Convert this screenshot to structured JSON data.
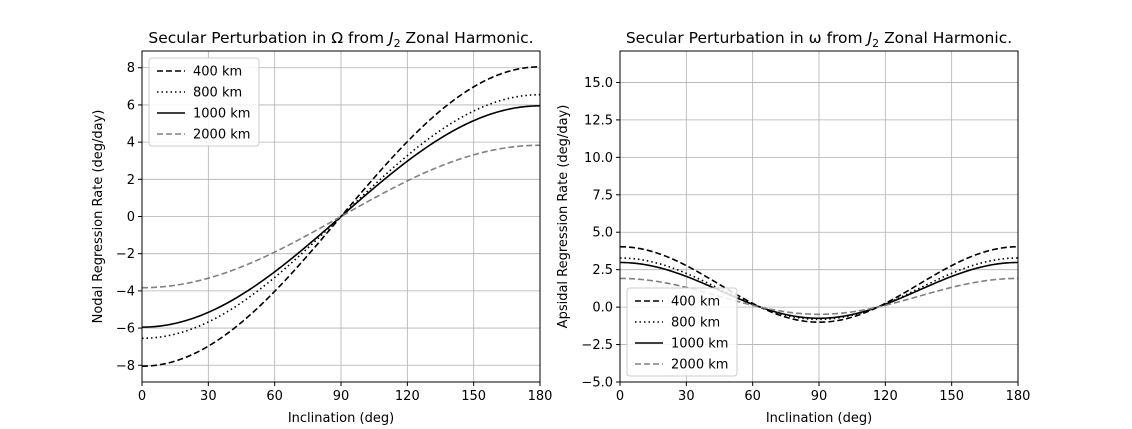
{
  "chart_data": [
    {
      "type": "line",
      "title": "Secular Perturbation in Ω from J₂ Zonal Harmonic.",
      "title_parts": {
        "prefix": "Secular Perturbation in Ω from ",
        "J": "J",
        "sub": "2",
        "suffix": " Zonal Harmonic."
      },
      "xlabel": "Inclination (deg)",
      "ylabel": "Nodal Regression Rate (deg/day)",
      "xlim": [
        0,
        180
      ],
      "ylim": [
        -8.9,
        8.9
      ],
      "xticks": [
        0,
        30,
        60,
        90,
        120,
        150,
        180
      ],
      "yticks": [
        -8,
        -6,
        -4,
        -2,
        0,
        2,
        4,
        6,
        8
      ],
      "ytick_labels": [
        "−8",
        "−6",
        "−4",
        "−2",
        "0",
        "2",
        "4",
        "6",
        "8"
      ],
      "grid": true,
      "legend_position": "top-left",
      "function": "nodal",
      "series": [
        {
          "name": "400 km",
          "amplitude": 8.05,
          "style": "dashed",
          "color": "#000000"
        },
        {
          "name": "800 km",
          "amplitude": 6.55,
          "style": "dotted",
          "color": "#000000"
        },
        {
          "name": "1000 km",
          "amplitude": 5.95,
          "style": "solid",
          "color": "#000000"
        },
        {
          "name": "2000 km",
          "amplitude": 3.83,
          "style": "dashed",
          "color": "#808080"
        }
      ]
    },
    {
      "type": "line",
      "title": "Secular Perturbation in ω from J₂ Zonal Harmonic.",
      "title_parts": {
        "prefix": "Secular Perturbation in ω from ",
        "J": "J",
        "sub": "2",
        "suffix": " Zonal Harmonic."
      },
      "xlabel": "Inclination (deg)",
      "ylabel": "Apsidal Regression Rate (deg/day)",
      "xlim": [
        0,
        180
      ],
      "ylim": [
        -5.0,
        17.1
      ],
      "xticks": [
        0,
        30,
        60,
        90,
        120,
        150,
        180
      ],
      "yticks": [
        -5.0,
        -2.5,
        0.0,
        2.5,
        5.0,
        7.5,
        10.0,
        12.5,
        15.0
      ],
      "ytick_labels": [
        "−5.0",
        "−2.5",
        "0.0",
        "2.5",
        "5.0",
        "7.5",
        "10.0",
        "12.5",
        "15.0"
      ],
      "grid": true,
      "legend_position": "bottom-left",
      "function": "apsidal",
      "series": [
        {
          "name": "400 km",
          "amplitude": 4.03,
          "style": "dashed",
          "color": "#000000"
        },
        {
          "name": "800 km",
          "amplitude": 3.28,
          "style": "dotted",
          "color": "#000000"
        },
        {
          "name": "1000 km",
          "amplitude": 2.98,
          "style": "solid",
          "color": "#000000"
        },
        {
          "name": "2000 km",
          "amplitude": 1.915,
          "style": "dashed",
          "color": "#808080"
        }
      ]
    }
  ]
}
